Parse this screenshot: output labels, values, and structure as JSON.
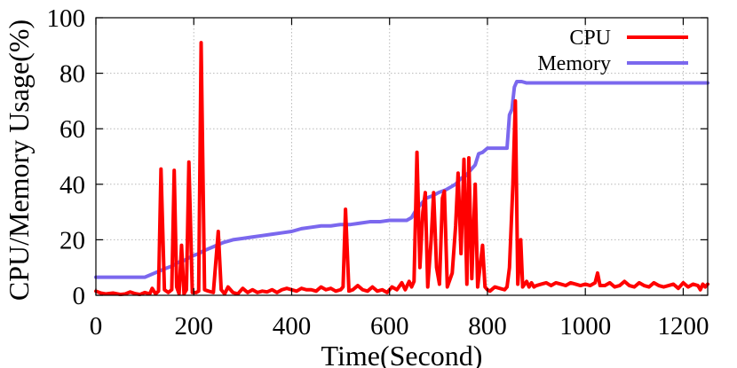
{
  "chart_data": {
    "type": "line",
    "xlabel": "Time(Second)",
    "ylabel": "CPU/Memory Usage(%)",
    "xlim": [
      0,
      1250
    ],
    "ylim": [
      0,
      100
    ],
    "xticks": [
      0,
      200,
      400,
      600,
      800,
      1000,
      1200
    ],
    "yticks": [
      0,
      20,
      40,
      60,
      80,
      100
    ],
    "grid": true,
    "legend_position": "top-right",
    "series": [
      {
        "name": "CPU",
        "color": "#ff0000",
        "points": [
          [
            0,
            1.5
          ],
          [
            10,
            0.8
          ],
          [
            20,
            0.5
          ],
          [
            35,
            0.8
          ],
          [
            50,
            0.3
          ],
          [
            60,
            0.5
          ],
          [
            70,
            1.2
          ],
          [
            80,
            0.6
          ],
          [
            90,
            0.3
          ],
          [
            100,
            1.0
          ],
          [
            110,
            0.5
          ],
          [
            115,
            2.5
          ],
          [
            122,
            0.5
          ],
          [
            128,
            1.5
          ],
          [
            133,
            45.5
          ],
          [
            140,
            2.0
          ],
          [
            148,
            1.0
          ],
          [
            155,
            2.0
          ],
          [
            160,
            45.0
          ],
          [
            165,
            3.0
          ],
          [
            170,
            0.5
          ],
          [
            175,
            18.0
          ],
          [
            180,
            0.5
          ],
          [
            185,
            2.0
          ],
          [
            190,
            48.0
          ],
          [
            197,
            1.0
          ],
          [
            205,
            1.0
          ],
          [
            210,
            1.5
          ],
          [
            215,
            91.0
          ],
          [
            222,
            2.0
          ],
          [
            230,
            1.5
          ],
          [
            240,
            1.0
          ],
          [
            250,
            23.0
          ],
          [
            256,
            2.0
          ],
          [
            263,
            0.5
          ],
          [
            270,
            3.0
          ],
          [
            280,
            1.0
          ],
          [
            290,
            0.5
          ],
          [
            300,
            2.5
          ],
          [
            310,
            1.0
          ],
          [
            320,
            2.0
          ],
          [
            330,
            1.0
          ],
          [
            340,
            1.5
          ],
          [
            350,
            1.2
          ],
          [
            360,
            2.0
          ],
          [
            370,
            1.0
          ],
          [
            380,
            2.0
          ],
          [
            390,
            2.5
          ],
          [
            400,
            2.0
          ],
          [
            410,
            1.5
          ],
          [
            420,
            2.5
          ],
          [
            430,
            2.0
          ],
          [
            440,
            2.0
          ],
          [
            450,
            1.5
          ],
          [
            460,
            3.0
          ],
          [
            470,
            2.0
          ],
          [
            480,
            2.5
          ],
          [
            490,
            1.5
          ],
          [
            500,
            2.0
          ],
          [
            505,
            3.0
          ],
          [
            510,
            31.0
          ],
          [
            517,
            1.5
          ],
          [
            525,
            2.0
          ],
          [
            535,
            3.5
          ],
          [
            545,
            2.0
          ],
          [
            555,
            1.5
          ],
          [
            565,
            3.0
          ],
          [
            575,
            1.5
          ],
          [
            585,
            2.0
          ],
          [
            595,
            1.0
          ],
          [
            605,
            3.0
          ],
          [
            615,
            2.0
          ],
          [
            625,
            4.5
          ],
          [
            632,
            2.0
          ],
          [
            640,
            5.0
          ],
          [
            645,
            3.0
          ],
          [
            650,
            5.0
          ],
          [
            656,
            51.5
          ],
          [
            662,
            10.0
          ],
          [
            668,
            30.0
          ],
          [
            673,
            37.0
          ],
          [
            678,
            3.0
          ],
          [
            685,
            20.0
          ],
          [
            690,
            37.0
          ],
          [
            696,
            10.0
          ],
          [
            702,
            4.0
          ],
          [
            708,
            35.0
          ],
          [
            712,
            37.5
          ],
          [
            718,
            3.0
          ],
          [
            728,
            8.0
          ],
          [
            735,
            25.0
          ],
          [
            740,
            44.0
          ],
          [
            746,
            15.0
          ],
          [
            752,
            49.0
          ],
          [
            758,
            4.0
          ],
          [
            762,
            49.5
          ],
          [
            768,
            6.0
          ],
          [
            775,
            40.0
          ],
          [
            780,
            3.0
          ],
          [
            790,
            18.0
          ],
          [
            795,
            3.0
          ],
          [
            800,
            2.0
          ],
          [
            805,
            1.5
          ],
          [
            815,
            3.0
          ],
          [
            825,
            2.5
          ],
          [
            835,
            2.0
          ],
          [
            840,
            3.0
          ],
          [
            845,
            10.0
          ],
          [
            852,
            40.0
          ],
          [
            857,
            70.0
          ],
          [
            862,
            4.0
          ],
          [
            868,
            20.0
          ],
          [
            872,
            3.0
          ],
          [
            880,
            5.0
          ],
          [
            885,
            3.0
          ],
          [
            890,
            4.5
          ],
          [
            895,
            3.0
          ],
          [
            900,
            3.5
          ],
          [
            910,
            4.0
          ],
          [
            920,
            4.5
          ],
          [
            930,
            3.5
          ],
          [
            940,
            4.5
          ],
          [
            950,
            4.0
          ],
          [
            960,
            3.5
          ],
          [
            970,
            4.5
          ],
          [
            980,
            4.0
          ],
          [
            990,
            3.5
          ],
          [
            1000,
            4.0
          ],
          [
            1010,
            3.5
          ],
          [
            1020,
            4.5
          ],
          [
            1025,
            8.0
          ],
          [
            1030,
            3.5
          ],
          [
            1040,
            3.5
          ],
          [
            1050,
            4.5
          ],
          [
            1060,
            3.0
          ],
          [
            1070,
            3.5
          ],
          [
            1080,
            5.0
          ],
          [
            1090,
            3.5
          ],
          [
            1100,
            3.0
          ],
          [
            1110,
            4.5
          ],
          [
            1120,
            3.5
          ],
          [
            1130,
            3.0
          ],
          [
            1140,
            4.5
          ],
          [
            1150,
            3.5
          ],
          [
            1160,
            3.0
          ],
          [
            1170,
            3.5
          ],
          [
            1180,
            4.0
          ],
          [
            1190,
            2.5
          ],
          [
            1200,
            4.5
          ],
          [
            1210,
            3.0
          ],
          [
            1220,
            4.0
          ],
          [
            1230,
            3.5
          ],
          [
            1235,
            2.0
          ],
          [
            1240,
            4.0
          ],
          [
            1245,
            3.0
          ],
          [
            1250,
            4.0
          ]
        ]
      },
      {
        "name": "Memory",
        "color": "#7b68ee",
        "points": [
          [
            0,
            6.5
          ],
          [
            20,
            6.5
          ],
          [
            60,
            6.5
          ],
          [
            100,
            6.5
          ],
          [
            120,
            8.0
          ],
          [
            140,
            9.5
          ],
          [
            155,
            10.5
          ],
          [
            170,
            12.0
          ],
          [
            180,
            12.5
          ],
          [
            195,
            14.0
          ],
          [
            210,
            15.0
          ],
          [
            220,
            16.0
          ],
          [
            240,
            17.5
          ],
          [
            260,
            19.0
          ],
          [
            280,
            20.0
          ],
          [
            300,
            20.5
          ],
          [
            320,
            21.0
          ],
          [
            340,
            21.5
          ],
          [
            360,
            22.0
          ],
          [
            380,
            22.5
          ],
          [
            400,
            23.0
          ],
          [
            420,
            24.0
          ],
          [
            440,
            24.5
          ],
          [
            460,
            25.0
          ],
          [
            480,
            25.0
          ],
          [
            500,
            25.5
          ],
          [
            520,
            25.5
          ],
          [
            540,
            26.0
          ],
          [
            560,
            26.5
          ],
          [
            580,
            26.5
          ],
          [
            600,
            27.0
          ],
          [
            620,
            27.0
          ],
          [
            635,
            27.0
          ],
          [
            645,
            28.0
          ],
          [
            655,
            31.0
          ],
          [
            665,
            33.0
          ],
          [
            675,
            35.0
          ],
          [
            690,
            36.0
          ],
          [
            700,
            37.0
          ],
          [
            715,
            38.0
          ],
          [
            725,
            39.0
          ],
          [
            735,
            40.0
          ],
          [
            745,
            42.0
          ],
          [
            755,
            43.0
          ],
          [
            765,
            45.0
          ],
          [
            775,
            47.0
          ],
          [
            782,
            51.0
          ],
          [
            790,
            51.5
          ],
          [
            800,
            53.0
          ],
          [
            820,
            53.0
          ],
          [
            840,
            53.0
          ],
          [
            845,
            65.0
          ],
          [
            850,
            67.0
          ],
          [
            855,
            75.0
          ],
          [
            860,
            77.0
          ],
          [
            870,
            77.0
          ],
          [
            880,
            76.5
          ],
          [
            900,
            76.5
          ],
          [
            950,
            76.5
          ],
          [
            1000,
            76.5
          ],
          [
            1050,
            76.5
          ],
          [
            1100,
            76.5
          ],
          [
            1150,
            76.5
          ],
          [
            1200,
            76.5
          ],
          [
            1250,
            76.5
          ]
        ]
      }
    ]
  }
}
